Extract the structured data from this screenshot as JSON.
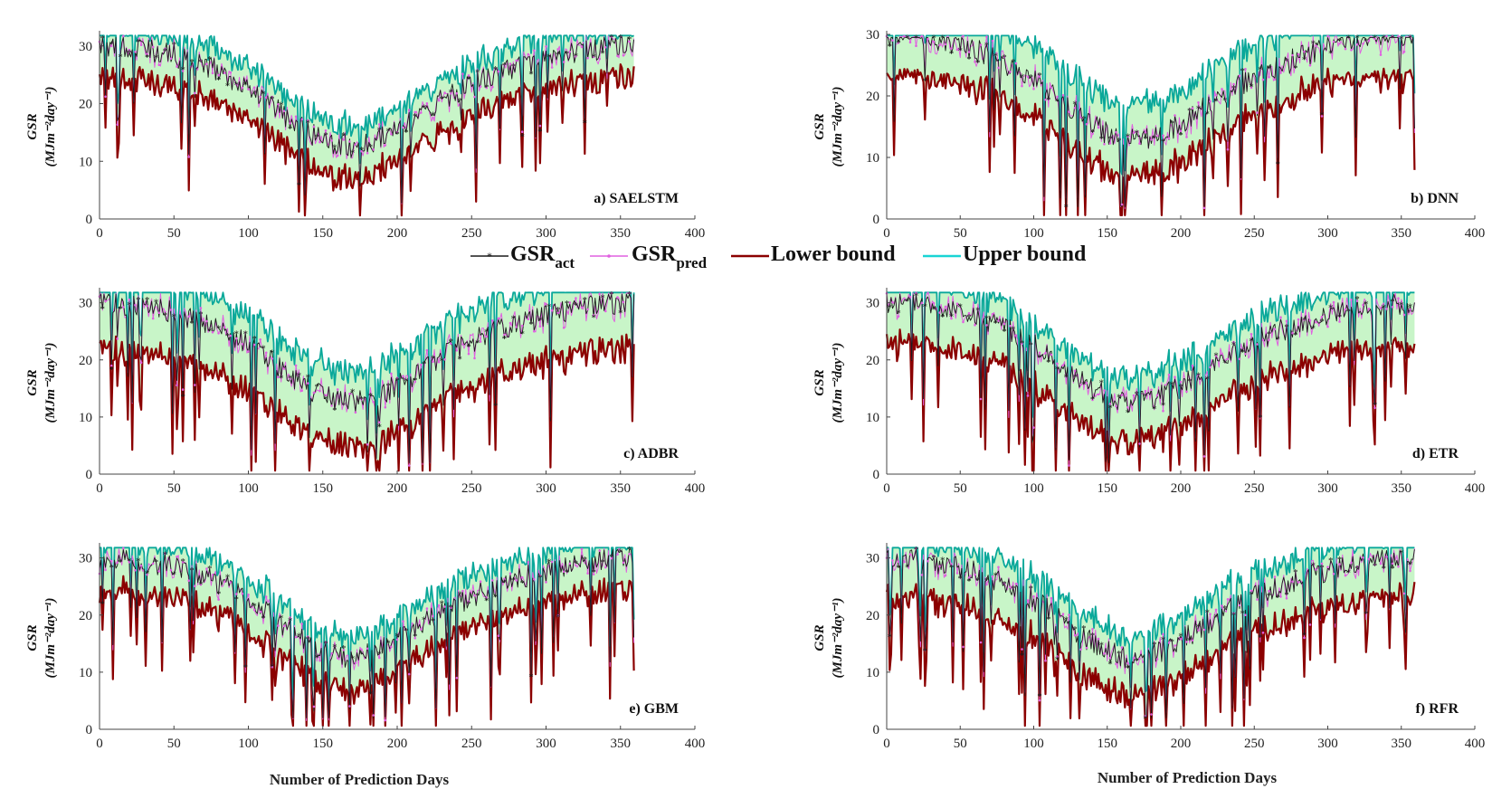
{
  "legend": {
    "act_main": "GSR",
    "act_sub": "act",
    "pred_main": "GSR",
    "pred_sub": "pred",
    "lower": "Lower bound",
    "upper": "Upper bound"
  },
  "colors": {
    "act": "#1a1a1a",
    "pred": "#e060e0",
    "lower": "#8b0000",
    "upper": "#0aa89a",
    "band": "#c8f5c8",
    "axis": "#444444"
  },
  "axes": {
    "xlabel": "Number of Prediction Days",
    "ylabel_main": "GSR",
    "ylabel_unit": "(MJm⁻²day⁻¹)",
    "xticks": [
      "0",
      "50",
      "100",
      "150",
      "200",
      "250",
      "300",
      "350",
      "400"
    ],
    "yticks": [
      "0",
      "10",
      "20",
      "30"
    ]
  },
  "chart_data": [
    {
      "type": "line",
      "label": "a) SAELSTM",
      "model": "SAELSTM",
      "xlim": [
        0,
        400
      ],
      "ylim": [
        0,
        32
      ],
      "days": 360,
      "series": [
        {
          "name": "GSR act"
        },
        {
          "name": "GSR pred"
        },
        {
          "name": "Lower bound"
        },
        {
          "name": "Upper bound"
        }
      ],
      "seed": 11,
      "upper_offset": 2.5,
      "lower_offset": 4.5,
      "pred_noise": 1.0
    },
    {
      "type": "line",
      "label": "b) DNN",
      "model": "DNN",
      "xlim": [
        0,
        400
      ],
      "ylim": [
        0,
        30
      ],
      "days": 360,
      "series": [
        {
          "name": "GSR act"
        },
        {
          "name": "GSR pred"
        },
        {
          "name": "Lower bound"
        },
        {
          "name": "Upper bound"
        }
      ],
      "seed": 23,
      "upper_offset": 4.5,
      "lower_offset": 5.0,
      "pred_noise": 1.6
    },
    {
      "type": "line",
      "label": "c) ADBR",
      "model": "ADBR",
      "xlim": [
        0,
        400
      ],
      "ylim": [
        0,
        32
      ],
      "days": 360,
      "series": [
        {
          "name": "GSR act"
        },
        {
          "name": "GSR pred"
        },
        {
          "name": "Lower bound"
        },
        {
          "name": "Upper bound"
        }
      ],
      "seed": 37,
      "upper_offset": 4.0,
      "lower_offset": 7.0,
      "pred_noise": 1.4
    },
    {
      "type": "line",
      "label": "d) ETR",
      "model": "ETR",
      "xlim": [
        0,
        400
      ],
      "ylim": [
        0,
        32
      ],
      "days": 360,
      "series": [
        {
          "name": "GSR act"
        },
        {
          "name": "GSR pred"
        },
        {
          "name": "Lower bound"
        },
        {
          "name": "Upper bound"
        }
      ],
      "seed": 41,
      "upper_offset": 3.0,
      "lower_offset": 6.0,
      "pred_noise": 1.3
    },
    {
      "type": "line",
      "label": "e) GBM",
      "model": "GBM",
      "xlim": [
        0,
        400
      ],
      "ylim": [
        0,
        32
      ],
      "days": 360,
      "series": [
        {
          "name": "GSR act"
        },
        {
          "name": "GSR pred"
        },
        {
          "name": "Lower bound"
        },
        {
          "name": "Upper bound"
        }
      ],
      "seed": 53,
      "upper_offset": 2.5,
      "lower_offset": 4.5,
      "pred_noise": 1.1
    },
    {
      "type": "line",
      "label": "f) RFR",
      "model": "RFR",
      "xlim": [
        0,
        400
      ],
      "ylim": [
        0,
        32
      ],
      "days": 360,
      "series": [
        {
          "name": "GSR act"
        },
        {
          "name": "GSR pred"
        },
        {
          "name": "Lower bound"
        },
        {
          "name": "Upper bound"
        }
      ],
      "seed": 67,
      "upper_offset": 3.0,
      "lower_offset": 5.5,
      "pred_noise": 1.2
    }
  ]
}
